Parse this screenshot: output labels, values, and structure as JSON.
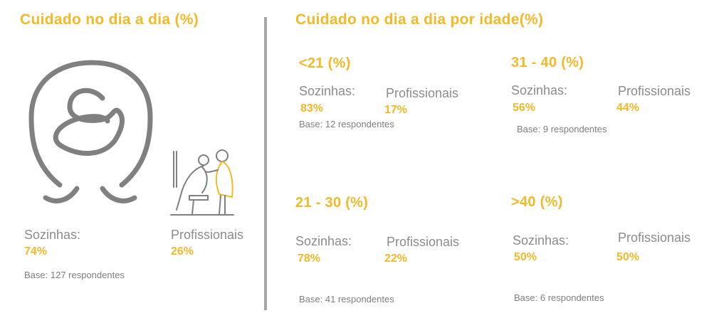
{
  "left": {
    "title": "Cuidado no dia a dia (%)",
    "sozinhas_label": "Sozinhas:",
    "sozinhas_value": "74%",
    "prof_label": "Profissionais",
    "prof_value": "26%",
    "base": "Base: 127 respondentes",
    "icons": [
      "person-alone-icon",
      "caregiver-helping-icon"
    ]
  },
  "right": {
    "title": "Cuidado no dia a dia por idade(%)",
    "groups": [
      {
        "title": "<21 (%)",
        "sozinhas_label": "Sozinhas:",
        "sozinhas_value": "83%",
        "prof_label": "Profissionais",
        "prof_value": "17%",
        "base": "Base: 12 respondentes"
      },
      {
        "title": "31 - 40 (%)",
        "sozinhas_label": "Sozinhas:",
        "sozinhas_value": "56%",
        "prof_label": "Profissionais",
        "prof_value": "44%",
        "base": "Base: 9 respondentes"
      },
      {
        "title": "21 - 30 (%)",
        "sozinhas_label": "Sozinhas:",
        "sozinhas_value": "78%",
        "prof_label": "Profissionais",
        "prof_value": "22%",
        "base": "Base: 41 respondentes"
      },
      {
        "title": ">40 (%)",
        "sozinhas_label": "Sozinhas:",
        "sozinhas_value": "50%",
        "prof_label": "Profissionais",
        "prof_value": "50%",
        "base": "Base: 6 respondentes"
      }
    ]
  },
  "colors": {
    "accent": "#f2b928",
    "text_gray": "#8c8c8c",
    "divider": "#a6a6a6",
    "icon_gray": "#808080"
  }
}
